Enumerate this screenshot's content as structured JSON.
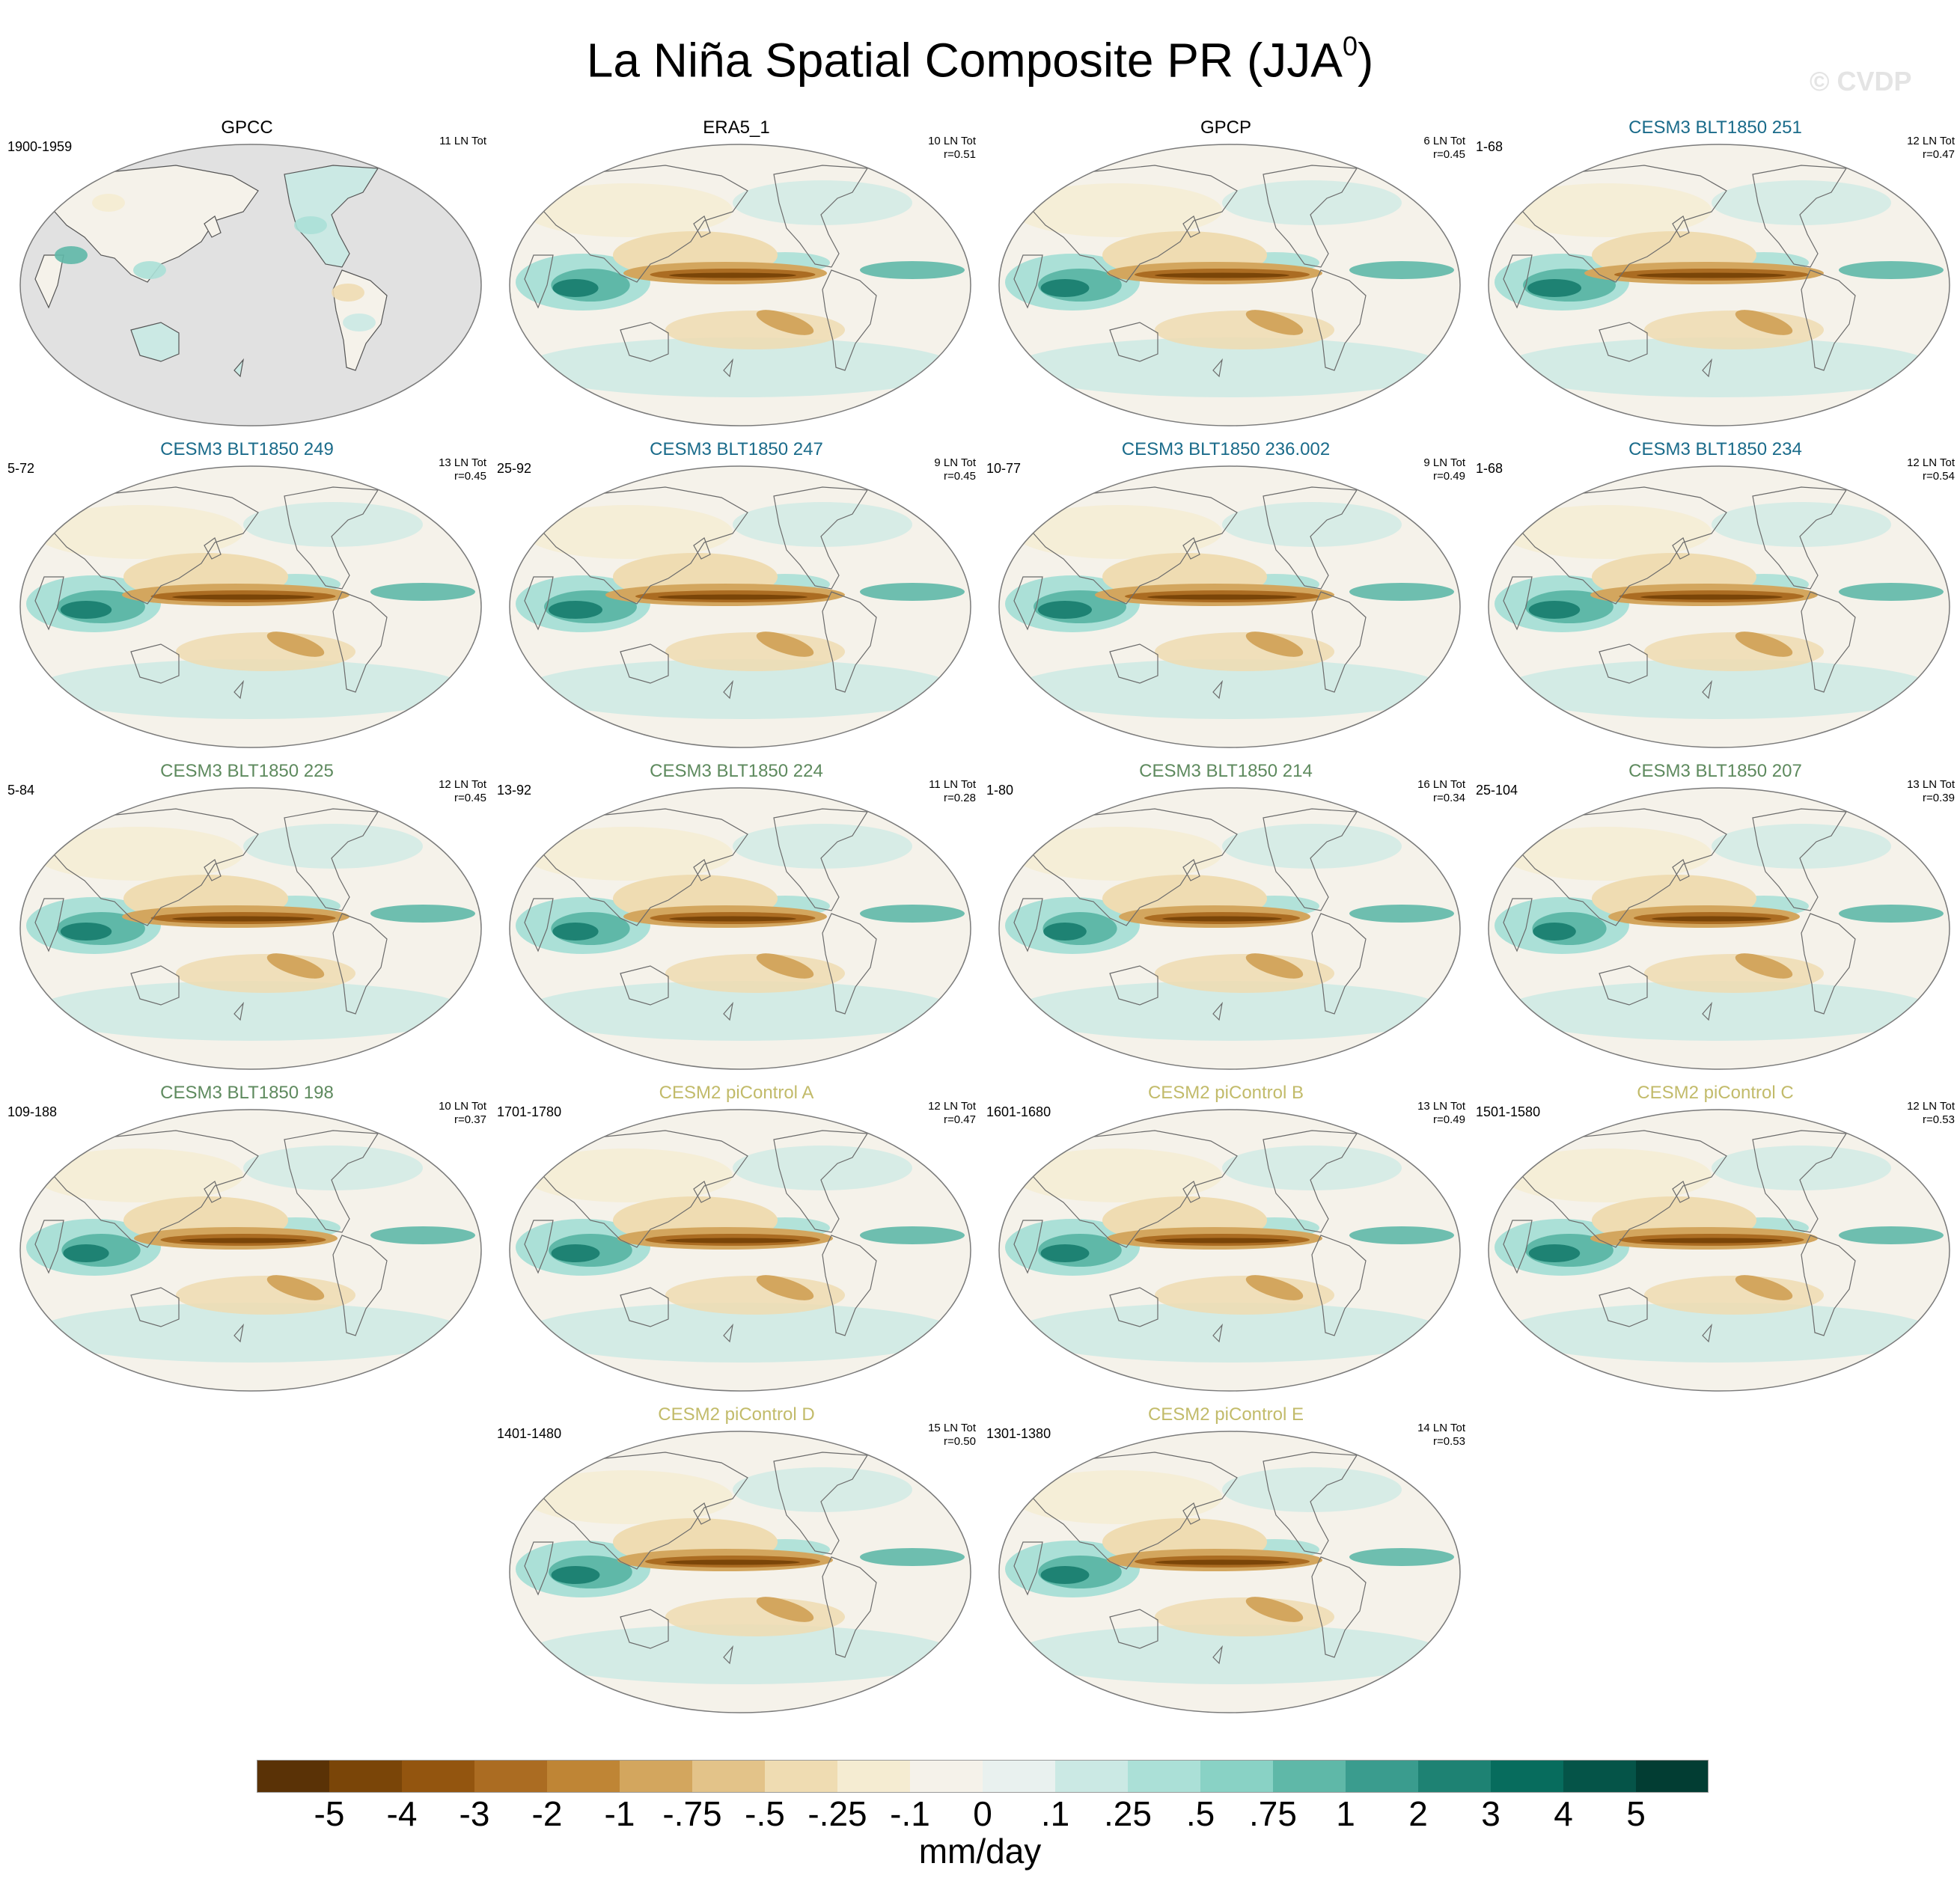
{
  "figure": {
    "title_main": "La Niña Spatial Composite PR (JJA",
    "title_sup": "0",
    "title_end": ")",
    "watermark": "© CVDP"
  },
  "panels": [
    {
      "title": "GPCC",
      "title_color": "#000000",
      "years": "1900-1959",
      "stats_1": "11 LN Tot",
      "stats_2": "",
      "masked_ocean": true,
      "strength": 0.3
    },
    {
      "title": "ERA5_1",
      "title_color": "#000000",
      "years": "",
      "stats_1": "10 LN Tot",
      "stats_2": "r=0.51",
      "masked_ocean": false,
      "strength": 0.85
    },
    {
      "title": "GPCP",
      "title_color": "#000000",
      "years": "",
      "stats_1": "6 LN Tot",
      "stats_2": "r=0.45",
      "masked_ocean": false,
      "strength": 0.9
    },
    {
      "title": "CESM3 BLT1850 251",
      "title_color": "#1a6b8a",
      "years": "1-68",
      "stats_1": "12 LN Tot",
      "stats_2": "r=0.47",
      "masked_ocean": false,
      "strength": 1.0
    },
    {
      "title": "CESM3 BLT1850 249",
      "title_color": "#1a6b8a",
      "years": "5-72",
      "stats_1": "13 LN Tot",
      "stats_2": "r=0.45",
      "masked_ocean": false,
      "strength": 0.95
    },
    {
      "title": "CESM3 BLT1850 247",
      "title_color": "#1a6b8a",
      "years": "25-92",
      "stats_1": "9 LN Tot",
      "stats_2": "r=0.45",
      "masked_ocean": false,
      "strength": 1.0
    },
    {
      "title": "CESM3 BLT1850 236.002",
      "title_color": "#1a6b8a",
      "years": "10-77",
      "stats_1": "9 LN Tot",
      "stats_2": "r=0.49",
      "masked_ocean": false,
      "strength": 1.0
    },
    {
      "title": "CESM3 BLT1850 234",
      "title_color": "#1a6b8a",
      "years": "1-68",
      "stats_1": "12 LN Tot",
      "stats_2": "r=0.54",
      "masked_ocean": false,
      "strength": 0.95
    },
    {
      "title": "CESM3 BLT1850 225",
      "title_color": "#5e8a5e",
      "years": "5-84",
      "stats_1": "12 LN Tot",
      "stats_2": "r=0.45",
      "masked_ocean": false,
      "strength": 0.95
    },
    {
      "title": "CESM3 BLT1850 224",
      "title_color": "#5e8a5e",
      "years": "13-92",
      "stats_1": "11 LN Tot",
      "stats_2": "r=0.28",
      "masked_ocean": false,
      "strength": 0.85
    },
    {
      "title": "CESM3 BLT1850 214",
      "title_color": "#5e8a5e",
      "years": "1-80",
      "stats_1": "16 LN Tot",
      "stats_2": "r=0.34",
      "masked_ocean": false,
      "strength": 0.8
    },
    {
      "title": "CESM3 BLT1850 207",
      "title_color": "#5e8a5e",
      "years": "25-104",
      "stats_1": "13 LN Tot",
      "stats_2": "r=0.39",
      "masked_ocean": false,
      "strength": 0.8
    },
    {
      "title": "CESM3 BLT1850 198",
      "title_color": "#5e8a5e",
      "years": "109-188",
      "stats_1": "10 LN Tot",
      "stats_2": "r=0.37",
      "masked_ocean": false,
      "strength": 0.85
    },
    {
      "title": "CESM2 piControl A",
      "title_color": "#c2bb6a",
      "years": "1701-1780",
      "stats_1": "12 LN Tot",
      "stats_2": "r=0.47",
      "masked_ocean": false,
      "strength": 0.9
    },
    {
      "title": "CESM2 piControl B",
      "title_color": "#c2bb6a",
      "years": "1601-1680",
      "stats_1": "13 LN Tot",
      "stats_2": "r=0.49",
      "masked_ocean": false,
      "strength": 0.9
    },
    {
      "title": "CESM2 piControl C",
      "title_color": "#c2bb6a",
      "years": "1501-1580",
      "stats_1": "12 LN Tot",
      "stats_2": "r=0.53",
      "masked_ocean": false,
      "strength": 0.95
    },
    {
      "title": "CESM2 piControl D",
      "title_color": "#c2bb6a",
      "years": "1401-1480",
      "stats_1": "15 LN Tot",
      "stats_2": "r=0.50",
      "masked_ocean": false,
      "strength": 0.9
    },
    {
      "title": "CESM2 piControl E",
      "title_color": "#c2bb6a",
      "years": "1301-1380",
      "stats_1": "14 LN Tot",
      "stats_2": "r=0.53",
      "masked_ocean": false,
      "strength": 0.9
    }
  ],
  "colorbar": {
    "colors": [
      "#5a3206",
      "#7a4508",
      "#93550f",
      "#ab6c22",
      "#bf8535",
      "#d3a65e",
      "#e3c389",
      "#efdcb2",
      "#f5ecd2",
      "#f5f2ea",
      "#e9f1ef",
      "#cbe9e4",
      "#abe0d7",
      "#89d2c5",
      "#5fb8a8",
      "#3a9c8e",
      "#1e8273",
      "#076c5d",
      "#055448",
      "#023d33"
    ],
    "labels": [
      "-5",
      "-4",
      "-3",
      "-2",
      "-1",
      "-.75",
      "-.5",
      "-.25",
      "-.1",
      "0",
      ".1",
      ".25",
      ".5",
      ".75",
      "1",
      "2",
      "3",
      "4",
      "5"
    ],
    "units": "mm/day"
  }
}
